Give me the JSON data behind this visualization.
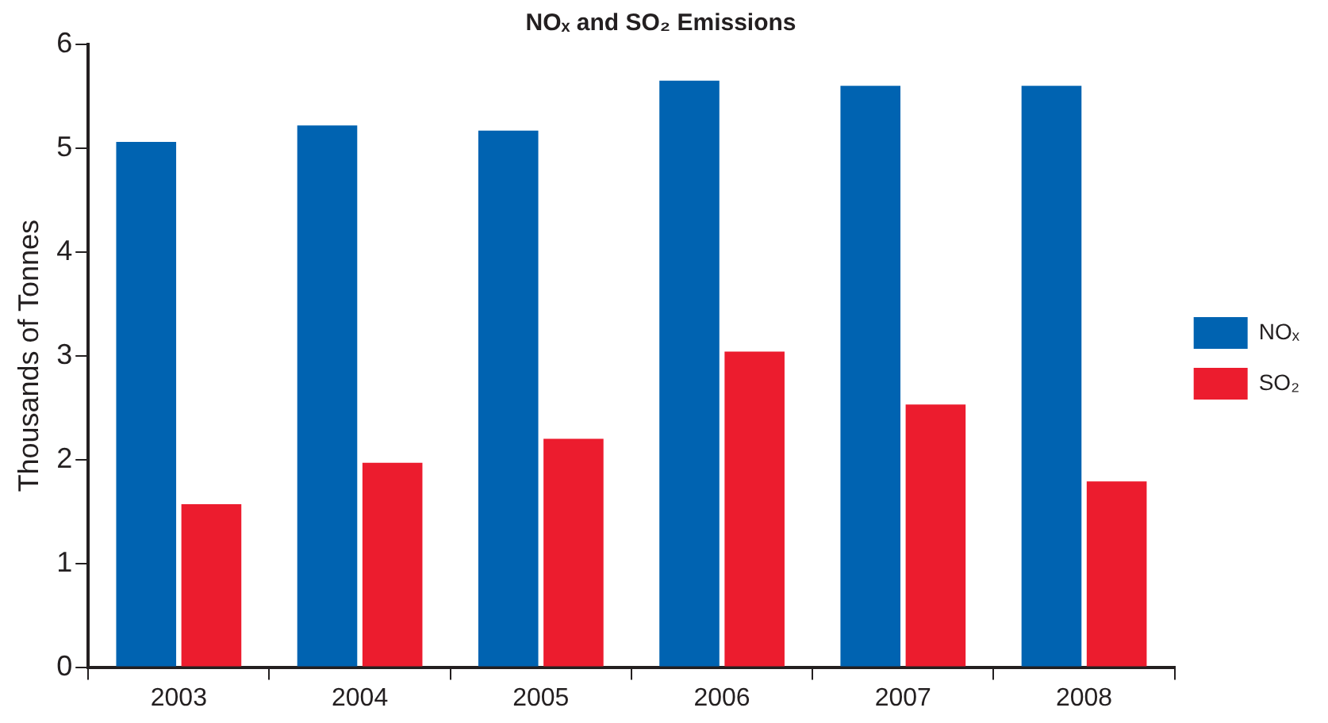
{
  "chart_data": {
    "type": "bar",
    "title": "NOₓ and SO₂ Emissions",
    "ylabel": "Thousands of Tonnes",
    "categories": [
      "2003",
      "2004",
      "2005",
      "2006",
      "2007",
      "2008"
    ],
    "series": [
      {
        "name": "NOₓ",
        "color": "#0063b1",
        "values": [
          5.06,
          5.22,
          5.17,
          5.65,
          5.6,
          5.6
        ]
      },
      {
        "name": "SO₂",
        "color": "#ec1c2e",
        "values": [
          1.57,
          1.97,
          2.2,
          3.04,
          2.53,
          1.79
        ]
      }
    ],
    "ylim": [
      0,
      6
    ],
    "yticks": [
      0,
      1,
      2,
      3,
      4,
      5,
      6
    ],
    "grid": false,
    "legend": "right"
  }
}
